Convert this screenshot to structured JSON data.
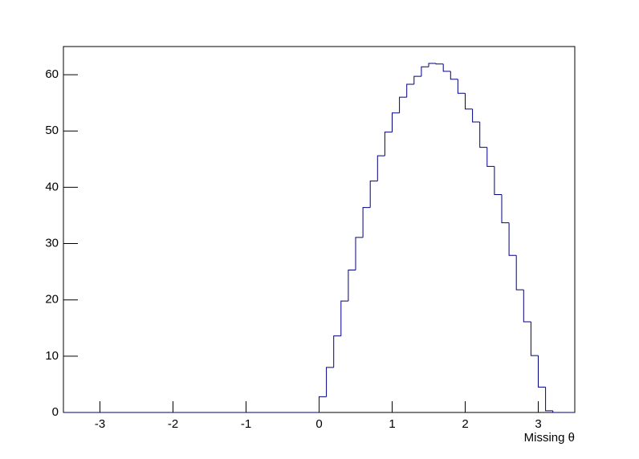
{
  "chart_data": {
    "type": "histogram",
    "x_label": "Missing θ",
    "color": "#000080",
    "bins": [
      -3.5,
      -3.4,
      -3.3,
      -3.2,
      -3.1,
      -3,
      -2.9,
      -2.8,
      -2.7,
      -2.6,
      -2.5,
      -2.4,
      -2.3,
      -2.2,
      -2.1,
      -2,
      -1.9,
      -1.8,
      -1.7,
      -1.6,
      -1.5,
      -1.4,
      -1.3,
      -1.2,
      -1.1,
      -1,
      -0.9,
      -0.8,
      -0.7,
      -0.6,
      -0.5,
      -0.4,
      -0.3,
      -0.2,
      -0.1,
      0,
      0.1,
      0.2,
      0.3,
      0.4,
      0.5,
      0.6,
      0.7,
      0.8,
      0.9,
      1,
      1.1,
      1.2,
      1.3,
      1.4,
      1.5,
      1.6,
      1.7,
      1.8,
      1.9,
      2,
      2.1,
      2.2,
      2.3,
      2.4,
      2.5,
      2.6,
      2.7,
      2.8,
      2.9,
      3,
      3.1,
      3.2,
      3.3,
      3.4,
      3.5
    ],
    "values": [
      0,
      0,
      0,
      0,
      0,
      0,
      0,
      0,
      0,
      0,
      0,
      0,
      0,
      0,
      0,
      0,
      0,
      0,
      0,
      0,
      0,
      0,
      0,
      0,
      0,
      0,
      0,
      0,
      0,
      0,
      0,
      0,
      0,
      0,
      0,
      2.8,
      8.0,
      13.6,
      19.8,
      25.3,
      31.1,
      36.4,
      41.1,
      45.6,
      49.8,
      53.2,
      56.0,
      58.3,
      59.7,
      61.4,
      62.0,
      61.9,
      60.6,
      59.2,
      56.7,
      53.9,
      51.6,
      47.1,
      43.7,
      38.7,
      33.7,
      27.9,
      21.8,
      16.1,
      10.1,
      4.5,
      0.3,
      0,
      0,
      0
    ],
    "xlim": [
      -3.5,
      3.5
    ],
    "xticks": [
      -3,
      -2,
      -1,
      0,
      1,
      2,
      3
    ],
    "ylim": [
      0,
      65
    ],
    "yticks": [
      0,
      10,
      20,
      30,
      40,
      50,
      60
    ]
  }
}
